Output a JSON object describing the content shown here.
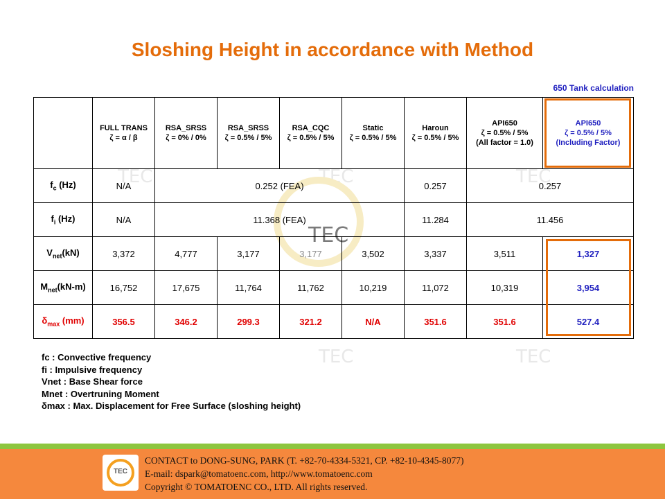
{
  "title": "Sloshing Height in accordance with Method",
  "tank_note": "650 Tank calculation",
  "watermark": "TEC",
  "columns": [
    {
      "l1": "FULL TRANS",
      "l2": "ζ = α / β",
      "l3": ""
    },
    {
      "l1": "RSA_SRSS",
      "l2": "ζ = 0% / 0%",
      "l3": ""
    },
    {
      "l1": "RSA_SRSS",
      "l2": "ζ = 0.5% / 5%",
      "l3": ""
    },
    {
      "l1": "RSA_CQC",
      "l2": "ζ = 0.5% / 5%",
      "l3": ""
    },
    {
      "l1": "Static",
      "l2": "ζ = 0.5% / 5%",
      "l3": ""
    },
    {
      "l1": "Haroun",
      "l2": "ζ = 0.5% / 5%",
      "l3": ""
    },
    {
      "l1": "API650",
      "l2": "ζ = 0.5% / 5%",
      "l3": "(All factor = 1.0)"
    },
    {
      "l1": "API650",
      "l2": "ζ = 0.5% / 5%",
      "l3": "(Including Factor)"
    }
  ],
  "rows": {
    "fc": {
      "label_main": "f",
      "label_sub": "c",
      "label_tail": " (Hz)",
      "full_trans": "N/A",
      "fea": "0.252 (FEA)",
      "haroun": "0.257",
      "api": "0.257"
    },
    "fi": {
      "label_main": "f",
      "label_sub": "i",
      "label_tail": " (Hz)",
      "full_trans": "N/A",
      "fea": "11.368 (FEA)",
      "haroun": "11.284",
      "api": "11.456"
    },
    "vnet": {
      "label_main": "V",
      "label_sub": "net",
      "label_tail": "(kN)",
      "values": [
        "3,372",
        "4,777",
        "3,177",
        "3,177",
        "3,502",
        "3,337",
        "3,511",
        "1,327"
      ]
    },
    "mnet": {
      "label_main": "M",
      "label_sub": "net",
      "label_tail": "(kN-m)",
      "values": [
        "16,752",
        "17,675",
        "11,764",
        "11,762",
        "10,219",
        "11,072",
        "10,319",
        "3,954"
      ]
    },
    "dmax": {
      "label_main": "δ",
      "label_sub": "max",
      "label_tail": " (mm)",
      "values": [
        "356.5",
        "346.2",
        "299.3",
        "321.2",
        "N/A",
        "351.6",
        "351.6",
        "527.4"
      ]
    }
  },
  "legend": [
    "fc : Convective frequency",
    "fi : Impulsive frequency",
    "Vnet : Base Shear force",
    "Mnet : Overtruning Moment",
    "δmax : Max. Displacement for Free Surface (sloshing height)"
  ],
  "footer": {
    "logo_text": "TEC",
    "line1": "CONTACT to DONG-SUNG, PARK (T. +82-70-4334-5321,  CP. +82-10-4345-8077)",
    "line2": "E-mail: dspark@tomatoenc.com,    http://www.tomatoenc.com",
    "line3": "Copyright © TOMATOENC CO., LTD.  All rights reserved."
  }
}
